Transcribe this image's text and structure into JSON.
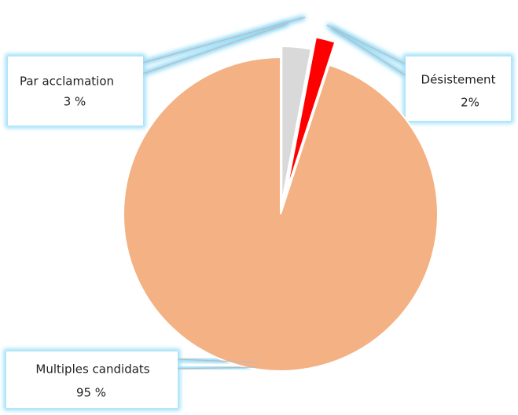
{
  "chart_data": {
    "type": "pie",
    "categories": [
      "Par acclamation",
      "Désistement",
      "Multiples candidats"
    ],
    "values": [
      3,
      2,
      95
    ],
    "value_labels": [
      "3 %",
      "2%",
      "95 %"
    ],
    "colors": [
      "#d9d9d9",
      "#ff0000",
      "#f4b183"
    ]
  }
}
